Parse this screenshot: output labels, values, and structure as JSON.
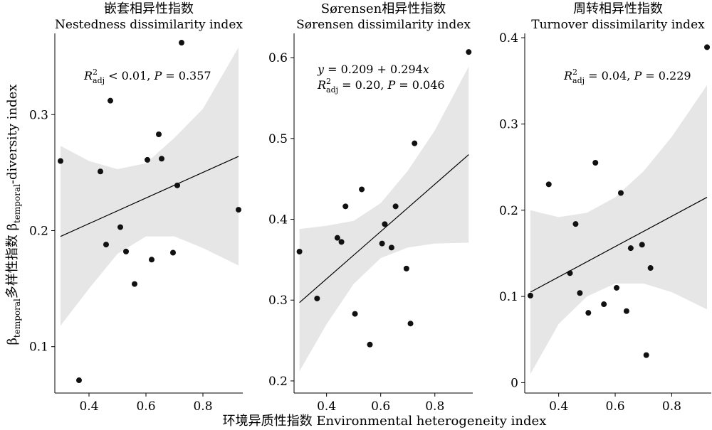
{
  "figure": {
    "ylabel_parts": [
      "β",
      "temporal",
      "多样性指数 β",
      "temporal",
      "-diversity index"
    ],
    "xlabel": "环境异质性指数 Environmental heterogeneity index"
  },
  "chart_data": [
    {
      "type": "scatter",
      "title_cn": "嵌套相异性指数",
      "title_en": "Nestedness dissimilarity index",
      "annotation_line2_parts": [
        "R",
        "2",
        "adj",
        " < 0.01, ",
        "P",
        " = 0.357"
      ],
      "xlim": [
        0.28,
        0.94
      ],
      "ylim": [
        0.06,
        0.37
      ],
      "xticks": [
        0.4,
        0.6,
        0.8
      ],
      "xtick_labels": [
        "0.4",
        "0.6",
        "0.8"
      ],
      "yticks": [
        0.1,
        0.2,
        0.3
      ],
      "ytick_labels": [
        "0.1",
        "0.2",
        "0.3"
      ],
      "points": [
        {
          "x": 0.3,
          "y": 0.26
        },
        {
          "x": 0.365,
          "y": 0.071
        },
        {
          "x": 0.44,
          "y": 0.251
        },
        {
          "x": 0.46,
          "y": 0.188
        },
        {
          "x": 0.475,
          "y": 0.312
        },
        {
          "x": 0.51,
          "y": 0.203
        },
        {
          "x": 0.53,
          "y": 0.182
        },
        {
          "x": 0.56,
          "y": 0.154
        },
        {
          "x": 0.605,
          "y": 0.261
        },
        {
          "x": 0.62,
          "y": 0.175
        },
        {
          "x": 0.645,
          "y": 0.283
        },
        {
          "x": 0.655,
          "y": 0.262
        },
        {
          "x": 0.695,
          "y": 0.181
        },
        {
          "x": 0.71,
          "y": 0.239
        },
        {
          "x": 0.725,
          "y": 0.362
        },
        {
          "x": 0.925,
          "y": 0.218
        }
      ],
      "fit": {
        "x": [
          0.3,
          0.925
        ],
        "y": [
          0.195,
          0.264
        ]
      },
      "ci": {
        "x": [
          0.3,
          0.4,
          0.5,
          0.6,
          0.7,
          0.8,
          0.925
        ],
        "upper": [
          0.273,
          0.26,
          0.253,
          0.258,
          0.28,
          0.305,
          0.358
        ],
        "lower": [
          0.118,
          0.15,
          0.18,
          0.195,
          0.195,
          0.185,
          0.17
        ]
      }
    },
    {
      "type": "scatter",
      "title_cn": "Sørensen相异性指数",
      "title_en": "Sørensen dissimilarity index",
      "annotation_line1_parts": [
        "y",
        " = 0.209 + 0.294",
        "x"
      ],
      "annotation_line2_parts": [
        "R",
        "2",
        "adj",
        " = 0.20, ",
        "P",
        " = 0.046"
      ],
      "xlim": [
        0.28,
        0.94
      ],
      "ylim": [
        0.185,
        0.63
      ],
      "xticks": [
        0.4,
        0.6,
        0.8
      ],
      "xtick_labels": [
        "0.4",
        "0.6",
        "0.8"
      ],
      "yticks": [
        0.2,
        0.3,
        0.4,
        0.5,
        0.6
      ],
      "ytick_labels": [
        "0.2",
        "0.3",
        "0.4",
        "0.5",
        "0.6"
      ],
      "points": [
        {
          "x": 0.3,
          "y": 0.36
        },
        {
          "x": 0.365,
          "y": 0.302
        },
        {
          "x": 0.44,
          "y": 0.377
        },
        {
          "x": 0.455,
          "y": 0.372
        },
        {
          "x": 0.47,
          "y": 0.416
        },
        {
          "x": 0.505,
          "y": 0.283
        },
        {
          "x": 0.53,
          "y": 0.437
        },
        {
          "x": 0.56,
          "y": 0.245
        },
        {
          "x": 0.605,
          "y": 0.37
        },
        {
          "x": 0.615,
          "y": 0.394
        },
        {
          "x": 0.64,
          "y": 0.365
        },
        {
          "x": 0.655,
          "y": 0.416
        },
        {
          "x": 0.695,
          "y": 0.339
        },
        {
          "x": 0.71,
          "y": 0.271
        },
        {
          "x": 0.725,
          "y": 0.494
        },
        {
          "x": 0.925,
          "y": 0.607
        }
      ],
      "fit": {
        "x": [
          0.3,
          0.925
        ],
        "y": [
          0.297,
          0.48
        ]
      },
      "ci": {
        "x": [
          0.3,
          0.4,
          0.5,
          0.6,
          0.7,
          0.8,
          0.925
        ],
        "upper": [
          0.388,
          0.392,
          0.398,
          0.42,
          0.46,
          0.51,
          0.589
        ],
        "lower": [
          0.212,
          0.27,
          0.32,
          0.352,
          0.365,
          0.37,
          0.371
        ]
      }
    },
    {
      "type": "scatter",
      "title_cn": "周转相异性指数",
      "title_en": "Turnover dissimilarity index",
      "annotation_line2_parts": [
        "R",
        "2",
        "adj",
        " = 0.04, ",
        "P",
        " = 0.229"
      ],
      "xlim": [
        0.28,
        0.94
      ],
      "ylim": [
        -0.012,
        0.405
      ],
      "xticks": [
        0.4,
        0.6,
        0.8
      ],
      "xtick_labels": [
        "0.4",
        "0.6",
        "0.8"
      ],
      "yticks": [
        0,
        0.1,
        0.2,
        0.3,
        0.4
      ],
      "ytick_labels": [
        "0",
        "0.1",
        "0.2",
        "0.3",
        "0.4"
      ],
      "points": [
        {
          "x": 0.3,
          "y": 0.101
        },
        {
          "x": 0.365,
          "y": 0.23
        },
        {
          "x": 0.44,
          "y": 0.127
        },
        {
          "x": 0.46,
          "y": 0.184
        },
        {
          "x": 0.475,
          "y": 0.104
        },
        {
          "x": 0.505,
          "y": 0.081
        },
        {
          "x": 0.53,
          "y": 0.255
        },
        {
          "x": 0.56,
          "y": 0.091
        },
        {
          "x": 0.605,
          "y": 0.11
        },
        {
          "x": 0.62,
          "y": 0.22
        },
        {
          "x": 0.64,
          "y": 0.083
        },
        {
          "x": 0.655,
          "y": 0.156
        },
        {
          "x": 0.695,
          "y": 0.16
        },
        {
          "x": 0.71,
          "y": 0.032
        },
        {
          "x": 0.725,
          "y": 0.133
        },
        {
          "x": 0.925,
          "y": 0.389
        }
      ],
      "fit": {
        "x": [
          0.3,
          0.925
        ],
        "y": [
          0.105,
          0.215
        ]
      },
      "ci": {
        "x": [
          0.3,
          0.4,
          0.5,
          0.6,
          0.7,
          0.8,
          0.925
        ],
        "upper": [
          0.2,
          0.192,
          0.197,
          0.215,
          0.245,
          0.285,
          0.345
        ],
        "lower": [
          0.01,
          0.068,
          0.1,
          0.115,
          0.115,
          0.105,
          0.085
        ]
      }
    }
  ]
}
